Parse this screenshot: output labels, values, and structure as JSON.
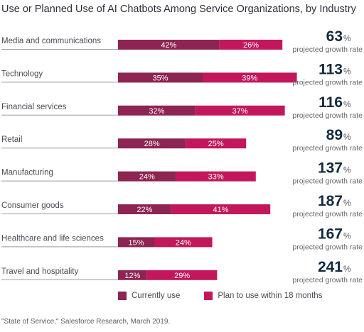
{
  "title": "Use or Planned Use of AI Chatbots Among Service Organizations, by Industry",
  "colors": {
    "current": "#8e2451",
    "planned": "#c2185b",
    "axis": "#9a9aa6"
  },
  "chart_data": {
    "type": "bar",
    "orientation": "horizontal",
    "stacked": true,
    "categories": [
      "Media and communications",
      "Technology",
      "Financial services",
      "Retail",
      "Manufacturing",
      "Consumer goods",
      "Healthcare and life sciences",
      "Travel and hospitality"
    ],
    "series": [
      {
        "name": "Currently use",
        "values": [
          42,
          35,
          32,
          28,
          24,
          22,
          15,
          12
        ],
        "labels": [
          "42%",
          "35%",
          "32%",
          "28%",
          "24%",
          "22%",
          "15%",
          "12%"
        ]
      },
      {
        "name": "Plan to use within 18 months",
        "values": [
          26,
          39,
          37,
          25,
          33,
          41,
          24,
          29
        ],
        "labels": [
          "26%",
          "39%",
          "37%",
          "25%",
          "33%",
          "41%",
          "24%",
          "29%"
        ]
      }
    ],
    "growth_rates": [
      "63",
      "113",
      "116",
      "89",
      "137",
      "187",
      "167",
      "241"
    ],
    "growth_unit": "%",
    "growth_caption": "projected growth rate",
    "legend_position": "bottom"
  },
  "source": "\"State of Service,\" Salesforce Research, March 2019."
}
